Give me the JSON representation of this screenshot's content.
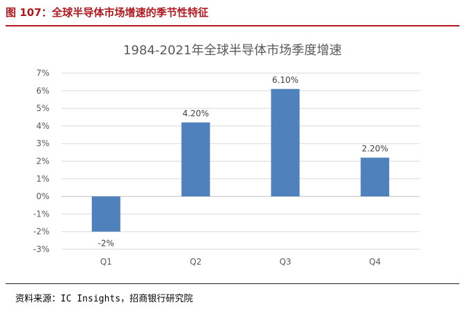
{
  "figure": {
    "title": "图 107：全球半导体市场增速的季节性特征",
    "accent_color": "#b0181e"
  },
  "source": "资料来源：IC Insights，招商银行研究院",
  "chart_data": {
    "type": "bar",
    "title": "1984-2021年全球半导体市场季度增速",
    "categories": [
      "Q1",
      "Q2",
      "Q3",
      "Q4"
    ],
    "values": [
      -2,
      4.2,
      6.1,
      2.2
    ],
    "data_labels": [
      "-2%",
      "4.20%",
      "6.10%",
      "2.20%"
    ],
    "ylim": [
      -3,
      7
    ],
    "yticks": [
      7,
      6,
      5,
      4,
      3,
      2,
      1,
      0,
      -1,
      -2,
      -3
    ],
    "ytick_labels": [
      "7%",
      "6%",
      "5%",
      "4%",
      "3%",
      "2%",
      "1%",
      "0%",
      "-1%",
      "-2%",
      "-3%"
    ],
    "grid": true,
    "bar_color": "#4f81bd",
    "xlabel": "",
    "ylabel": ""
  }
}
